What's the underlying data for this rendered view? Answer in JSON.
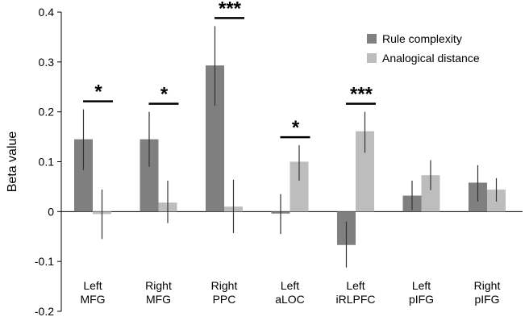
{
  "chart_data": {
    "type": "bar",
    "title": "",
    "xlabel": "",
    "ylabel": "Beta value",
    "ylim": [
      -0.2,
      0.4
    ],
    "yticks": [
      "-0.2",
      "-0.1",
      "0",
      "0.1",
      "0.2",
      "0.3",
      "0.4"
    ],
    "ytick_values": [
      -0.2,
      -0.1,
      0,
      0.1,
      0.2,
      0.3,
      0.4
    ],
    "categories": [
      [
        "Left",
        "MFG"
      ],
      [
        "Right",
        "MFG"
      ],
      [
        "Right",
        "PPC"
      ],
      [
        "Left",
        "aLOC"
      ],
      [
        "Left",
        "iRLPFC"
      ],
      [
        "Left",
        "pIFG"
      ],
      [
        "Right",
        "pIFG"
      ]
    ],
    "series": [
      {
        "name": "Rule complexity",
        "color": "#7f7f7f",
        "values": [
          0.145,
          0.145,
          0.293,
          -0.004,
          -0.067,
          0.032,
          0.058
        ],
        "err_low": [
          0.083,
          0.09,
          0.212,
          -0.045,
          -0.112,
          0.003,
          0.02
        ],
        "err_high": [
          0.205,
          0.2,
          0.372,
          0.035,
          -0.02,
          0.062,
          0.093
        ]
      },
      {
        "name": "Analogical distance",
        "color": "#bdbdbd",
        "values": [
          -0.005,
          0.018,
          0.01,
          0.1,
          0.161,
          0.073,
          0.044
        ],
        "err_low": [
          -0.055,
          -0.023,
          -0.043,
          0.062,
          0.118,
          0.043,
          0.02
        ],
        "err_high": [
          0.044,
          0.062,
          0.064,
          0.133,
          0.2,
          0.103,
          0.067
        ]
      }
    ],
    "significance": [
      {
        "category_index": 0,
        "label": "*"
      },
      {
        "category_index": 1,
        "label": "*"
      },
      {
        "category_index": 2,
        "label": "***"
      },
      {
        "category_index": 3,
        "label": "*"
      },
      {
        "category_index": 4,
        "label": "***"
      }
    ],
    "legend_position": "top-right",
    "grid": false
  }
}
